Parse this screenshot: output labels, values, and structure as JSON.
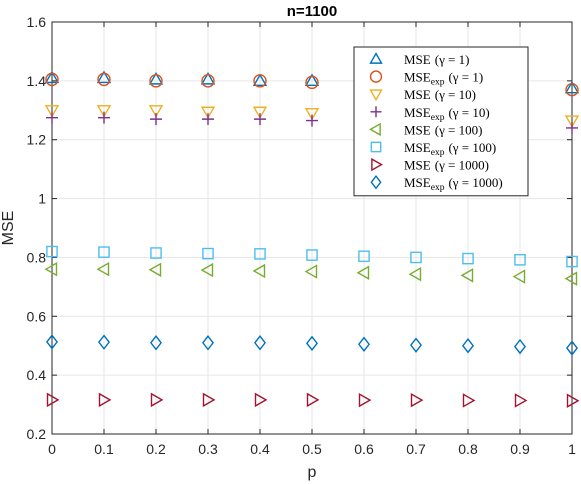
{
  "chart_data": {
    "type": "scatter",
    "title": "n=1100",
    "xlabel": "p",
    "ylabel": "MSE",
    "xlim": [
      0,
      1
    ],
    "ylim": [
      0.2,
      1.6
    ],
    "xticks": [
      "0",
      "0.1",
      "0.2",
      "0.3",
      "0.4",
      "0.5",
      "0.6",
      "0.7",
      "0.8",
      "0.9",
      "1"
    ],
    "yticks": [
      "0.2",
      "0.4",
      "0.6",
      "0.8",
      "1",
      "1.2",
      "1.4",
      "1.6"
    ],
    "grid": true,
    "legend_position": "top-right",
    "series": [
      {
        "name": "MSE (γ = 1)",
        "legend_main": "MSE",
        "legend_sub": "",
        "legend_gamma": "(γ = 1)",
        "marker": "triangle-up",
        "color": "#0072BD",
        "x": [
          0,
          0.1,
          0.2,
          0.3,
          0.4,
          0.5,
          1
        ],
        "y": [
          1.41,
          1.41,
          1.405,
          1.405,
          1.4,
          1.4,
          1.375
        ]
      },
      {
        "name": "MSE_exp (γ = 1)",
        "legend_main": "MSE",
        "legend_sub": "exp",
        "legend_gamma": "(γ = 1)",
        "marker": "circle",
        "color": "#D95319",
        "x": [
          0,
          0.1,
          0.2,
          0.3,
          0.4,
          0.5,
          1
        ],
        "y": [
          1.405,
          1.405,
          1.4,
          1.4,
          1.4,
          1.395,
          1.37
        ]
      },
      {
        "name": "MSE (γ = 10)",
        "legend_main": "MSE",
        "legend_sub": "",
        "legend_gamma": "(γ = 10)",
        "marker": "triangle-down",
        "color": "#EDB120",
        "x": [
          0,
          0.1,
          0.2,
          0.3,
          0.4,
          0.5,
          1
        ],
        "y": [
          1.3,
          1.3,
          1.3,
          1.295,
          1.295,
          1.29,
          1.265
        ]
      },
      {
        "name": "MSE_exp (γ = 10)",
        "legend_main": "MSE",
        "legend_sub": "exp",
        "legend_gamma": "(γ = 10)",
        "marker": "plus",
        "color": "#7E2F8E",
        "x": [
          0,
          0.1,
          0.2,
          0.3,
          0.4,
          0.5,
          1
        ],
        "y": [
          1.275,
          1.275,
          1.27,
          1.27,
          1.27,
          1.265,
          1.24
        ]
      },
      {
        "name": "MSE (γ = 100)",
        "legend_main": "MSE",
        "legend_sub": "",
        "legend_gamma": "(γ = 100)",
        "marker": "triangle-left",
        "color": "#77AC30",
        "x": [
          0,
          0.1,
          0.2,
          0.3,
          0.4,
          0.5,
          0.6,
          0.7,
          0.8,
          0.9,
          1
        ],
        "y": [
          0.76,
          0.76,
          0.758,
          0.757,
          0.754,
          0.752,
          0.748,
          0.743,
          0.739,
          0.735,
          0.728
        ]
      },
      {
        "name": "MSE_exp (γ = 100)",
        "legend_main": "MSE",
        "legend_sub": "exp",
        "legend_gamma": "(γ = 100)",
        "marker": "square",
        "color": "#4DBEEE",
        "x": [
          0,
          0.1,
          0.2,
          0.3,
          0.4,
          0.5,
          0.6,
          0.7,
          0.8,
          0.9,
          1
        ],
        "y": [
          0.82,
          0.818,
          0.815,
          0.813,
          0.812,
          0.808,
          0.804,
          0.8,
          0.796,
          0.792,
          0.786
        ]
      },
      {
        "name": "MSE (γ = 1000)",
        "legend_main": "MSE",
        "legend_sub": "",
        "legend_gamma": "(γ = 1000)",
        "marker": "triangle-right",
        "color": "#A2142F",
        "x": [
          0,
          0.1,
          0.2,
          0.3,
          0.4,
          0.5,
          0.6,
          0.7,
          0.8,
          0.9,
          1
        ],
        "y": [
          0.316,
          0.316,
          0.316,
          0.316,
          0.316,
          0.316,
          0.315,
          0.315,
          0.314,
          0.314,
          0.313
        ]
      },
      {
        "name": "MSE_exp (γ = 1000)",
        "legend_main": "MSE",
        "legend_sub": "exp",
        "legend_gamma": "(γ = 1000)",
        "marker": "diamond",
        "color": "#0072BD",
        "x": [
          0,
          0.1,
          0.2,
          0.3,
          0.4,
          0.5,
          0.6,
          0.7,
          0.8,
          0.9,
          1
        ],
        "y": [
          0.513,
          0.512,
          0.51,
          0.51,
          0.51,
          0.508,
          0.505,
          0.502,
          0.5,
          0.497,
          0.492
        ]
      }
    ]
  }
}
